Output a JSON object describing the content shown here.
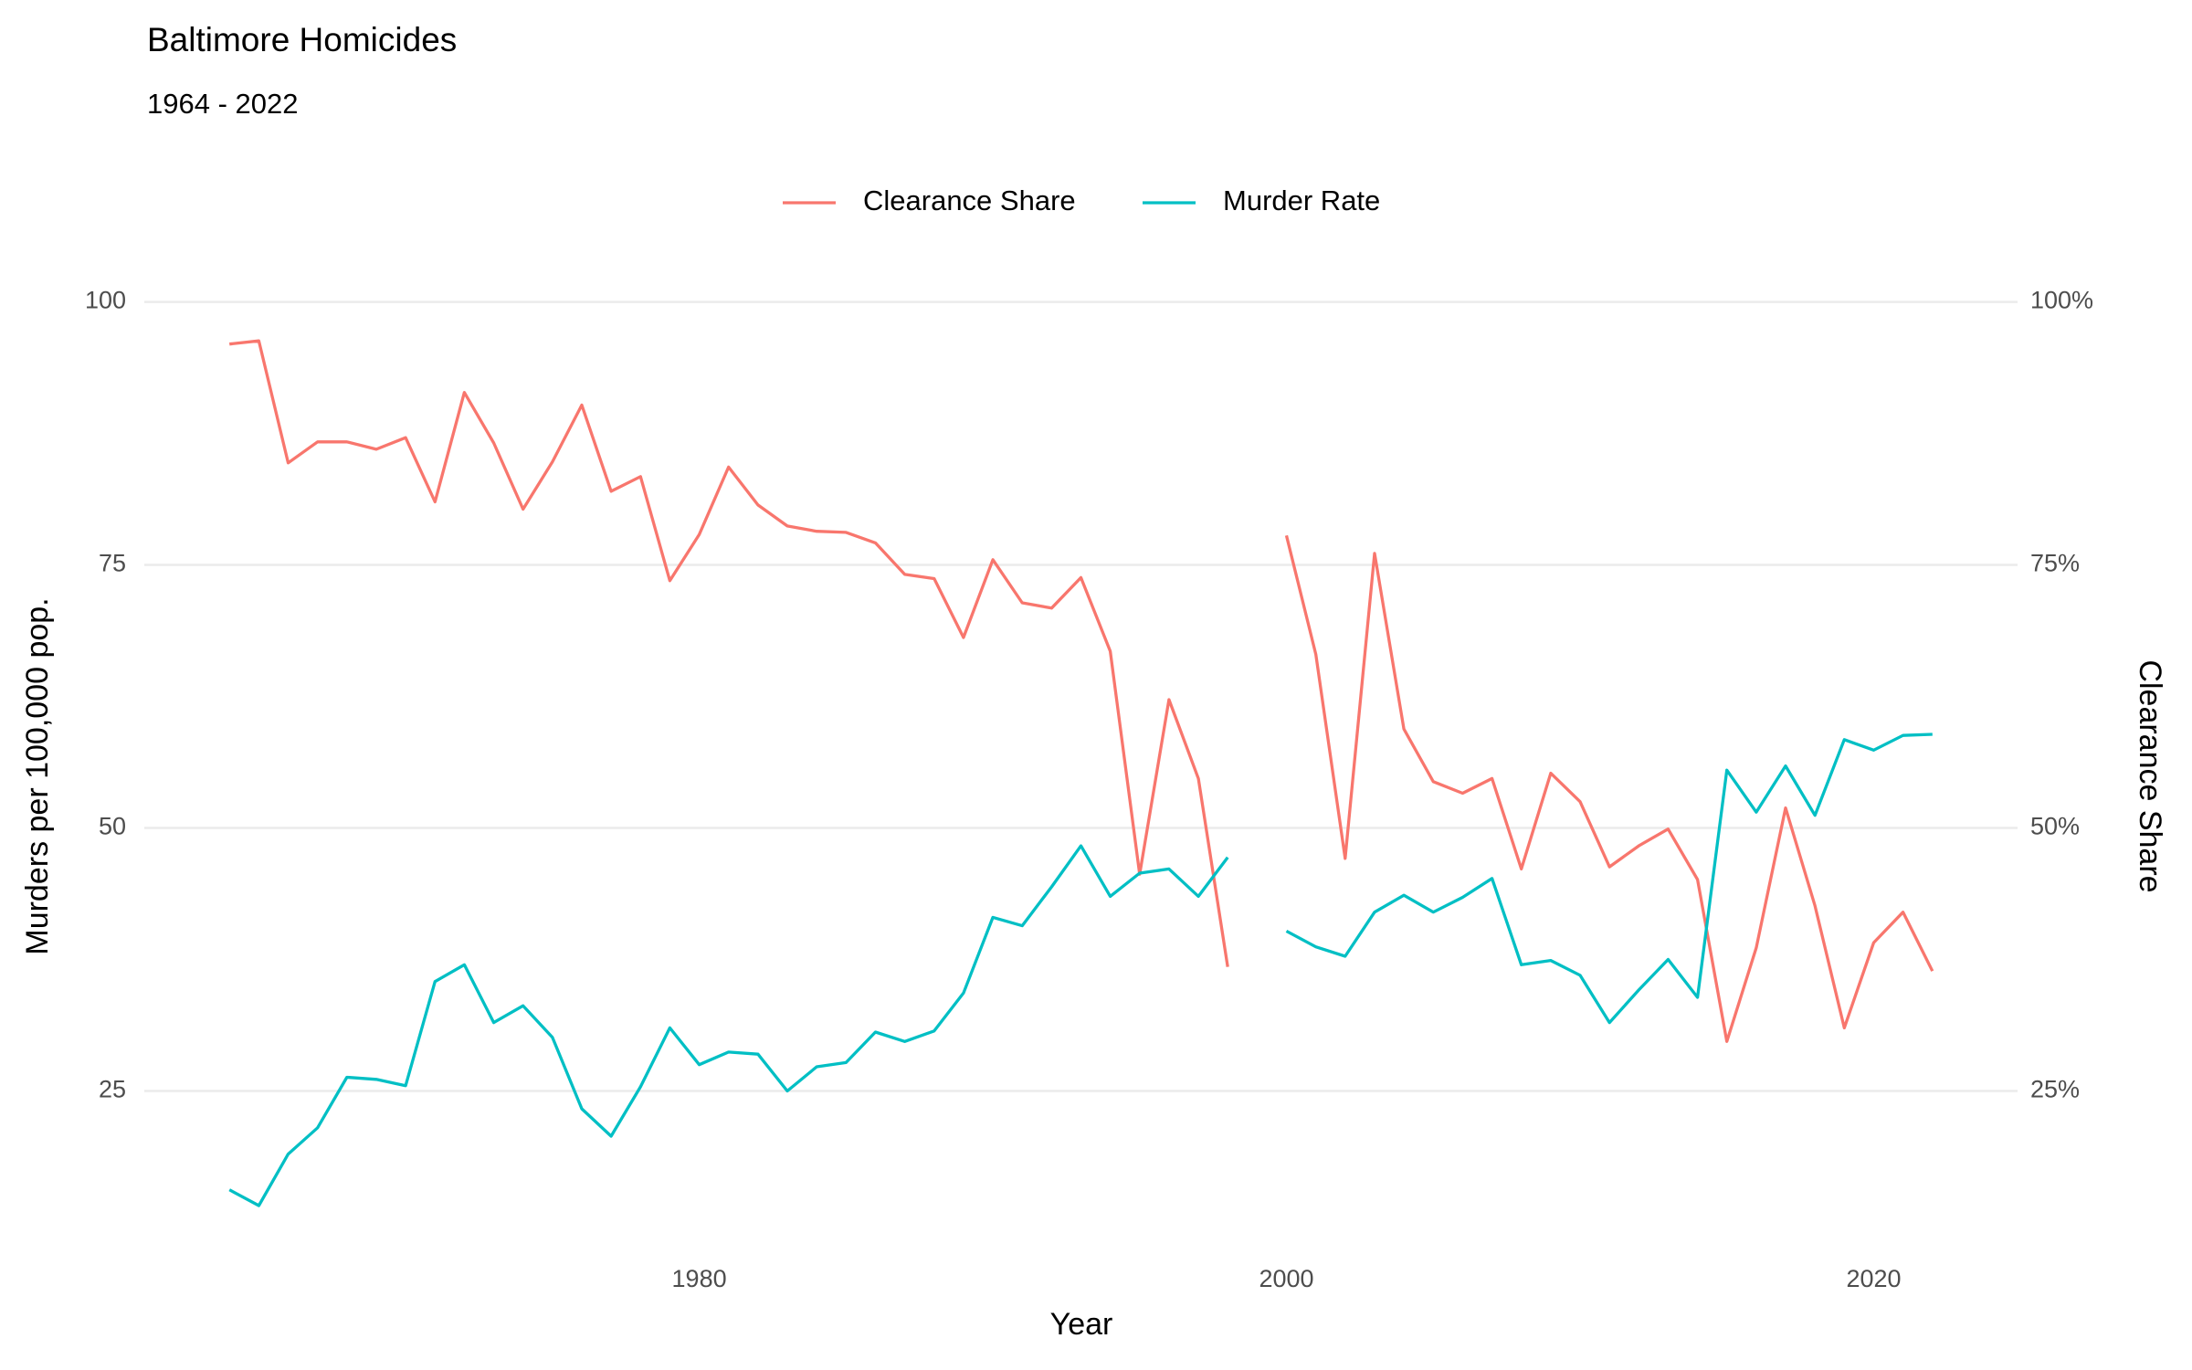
{
  "chart_data": {
    "type": "line",
    "title": "Baltimore Homicides",
    "subtitle": "1964 - 2022",
    "x_label": "Year",
    "y_label": "Murders per 100,000 pop.",
    "y2_label": "Clearance Share",
    "x": [
      1964,
      1965,
      1966,
      1967,
      1968,
      1969,
      1970,
      1971,
      1972,
      1973,
      1974,
      1975,
      1976,
      1977,
      1978,
      1979,
      1980,
      1981,
      1982,
      1983,
      1984,
      1985,
      1986,
      1987,
      1988,
      1989,
      1990,
      1991,
      1992,
      1993,
      1994,
      1995,
      1996,
      1997,
      1998,
      1999,
      2000,
      2001,
      2002,
      2003,
      2004,
      2005,
      2006,
      2007,
      2008,
      2009,
      2010,
      2011,
      2012,
      2013,
      2014,
      2015,
      2016,
      2017,
      2018,
      2019,
      2020,
      2021,
      2022
    ],
    "series": [
      {
        "name": "Clearance Share",
        "color": "#F8766D",
        "axis": "y2",
        "values": [
          96.0,
          96.3,
          84.7,
          86.7,
          86.7,
          86.0,
          87.1,
          81.0,
          91.4,
          86.6,
          80.3,
          84.8,
          90.2,
          82.0,
          83.4,
          73.5,
          77.9,
          84.3,
          80.7,
          78.7,
          78.2,
          78.1,
          77.1,
          74.1,
          73.7,
          68.1,
          75.5,
          71.4,
          70.9,
          73.8,
          66.8,
          45.6,
          62.2,
          54.7,
          36.8,
          null,
          77.8,
          66.5,
          47.1,
          76.1,
          59.4,
          54.4,
          53.3,
          54.7,
          46.1,
          55.2,
          52.5,
          46.3,
          48.3,
          49.9,
          45.1,
          29.7,
          38.6,
          51.9,
          42.6,
          31.0,
          39.1,
          42.0,
          36.4
        ]
      },
      {
        "name": "Murder Rate",
        "color": "#00BFC4",
        "values": [
          15.6,
          14.1,
          19.0,
          21.5,
          26.3,
          26.1,
          25.5,
          35.4,
          37.0,
          31.5,
          33.1,
          30.1,
          23.3,
          20.7,
          25.4,
          31.0,
          27.5,
          28.7,
          28.5,
          25.0,
          27.3,
          27.7,
          30.6,
          29.7,
          30.7,
          34.3,
          41.5,
          40.7,
          44.4,
          48.3,
          43.5,
          45.7,
          46.1,
          43.5,
          47.2,
          null,
          40.2,
          38.7,
          37.8,
          42.0,
          43.6,
          42.0,
          43.4,
          45.2,
          37.0,
          37.4,
          36.0,
          31.5,
          34.6,
          37.5,
          33.9,
          55.5,
          51.5,
          55.9,
          51.2,
          58.4,
          57.4,
          58.8,
          58.9
        ]
      }
    ],
    "xlim": [
      1961.1,
      2024.9
    ],
    "xticks": [
      1980,
      2000,
      2020
    ],
    "ylim": [
      9.5,
      100.4
    ],
    "yticks": [
      25,
      50,
      75,
      100
    ],
    "y2lim": [
      9.5,
      100.4
    ],
    "y2ticks": [
      {
        "value": 25,
        "label": "25%"
      },
      {
        "value": 50,
        "label": "50%"
      },
      {
        "value": 75,
        "label": "75%"
      },
      {
        "value": 100,
        "label": "100%"
      }
    ],
    "grid": "y",
    "legend": "top"
  }
}
